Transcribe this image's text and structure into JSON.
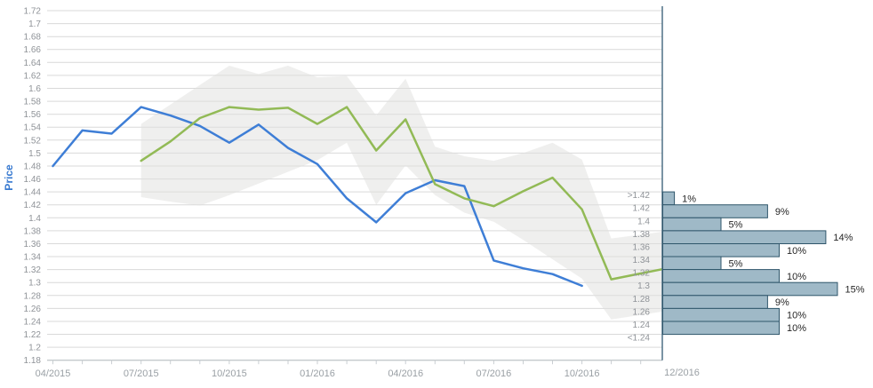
{
  "chart_data": {
    "type": "line",
    "title": "",
    "ylabel": "Price",
    "grid": true,
    "legend": "none",
    "ylim": [
      1.18,
      1.72
    ],
    "y_tick_labels": [
      "1.72",
      "1.7",
      "1.68",
      "1.66",
      "1.64",
      "1.62",
      "1.6",
      "1.58",
      "1.56",
      "1.54",
      "1.52",
      "1.5",
      "1.48",
      "1.46",
      "1.44",
      "1.42",
      "1.4",
      "1.38",
      "1.36",
      "1.34",
      "1.32",
      "1.3",
      "1.28",
      "1.26",
      "1.24",
      "1.22",
      "1.2",
      "1.18"
    ],
    "months": [
      "04/2015",
      "05/2015",
      "06/2015",
      "07/2015",
      "08/2015",
      "09/2015",
      "10/2015",
      "11/2015",
      "12/2015",
      "01/2016",
      "02/2016",
      "03/2016",
      "04/2016",
      "05/2016",
      "06/2016",
      "07/2016",
      "08/2016",
      "09/2016",
      "10/2016",
      "11/2016",
      "12/2016"
    ],
    "x_major_ticks": [
      {
        "label": "04/2015",
        "month_index": 0
      },
      {
        "label": "07/2015",
        "month_index": 3
      },
      {
        "label": "10/2015",
        "month_index": 6
      },
      {
        "label": "01/2016",
        "month_index": 9
      },
      {
        "label": "04/2016",
        "month_index": 12
      },
      {
        "label": "07/2016",
        "month_index": 15
      },
      {
        "label": "10/2016",
        "month_index": 18
      }
    ],
    "minor_tick_every_month": true,
    "series": [
      {
        "name": "price-history",
        "color": "#3e7ed6",
        "start_month_index": 0,
        "values": [
          1.48,
          1.535,
          1.53,
          1.571,
          1.558,
          1.542,
          1.516,
          1.544,
          1.508,
          1.483,
          1.43,
          1.393,
          1.438,
          1.458,
          1.449,
          1.334,
          1.322,
          1.313,
          1.295
        ],
        "extend_to_plot_edge": false
      },
      {
        "name": "forecast",
        "color": "#92ba56",
        "start_month_index": 3,
        "values": [
          1.488,
          1.518,
          1.554,
          1.571,
          1.567,
          1.57,
          1.545,
          1.571,
          1.504,
          1.552,
          1.452,
          1.43,
          1.418,
          1.441,
          1.462,
          1.413,
          1.305,
          1.314
        ],
        "extend_to_plot_edge": true
      }
    ],
    "band": {
      "name": "confidence-band",
      "fill": "rgba(224,224,222,0.5)",
      "start_month_index": 3,
      "upper": [
        1.545,
        1.575,
        1.605,
        1.635,
        1.622,
        1.635,
        1.617,
        1.619,
        1.558,
        1.615,
        1.51,
        1.495,
        1.488,
        1.5,
        1.516,
        1.49,
        1.368,
        1.374
      ],
      "lower": [
        1.432,
        1.425,
        1.419,
        1.435,
        1.453,
        1.471,
        1.489,
        1.516,
        1.42,
        1.481,
        1.435,
        1.408,
        1.394,
        1.366,
        1.336,
        1.306,
        1.243,
        1.25
      ],
      "extend_to_plot_edge": true
    },
    "histogram": {
      "date_label": "12/2016",
      "unit": "%",
      "bar_fill": "#9fb9c7",
      "bar_border": "#2f566b",
      "rows": [
        {
          "range_label": ">1.42",
          "pct": 1
        },
        {
          "range_label": "1.42",
          "pct": 9
        },
        {
          "range_label": "1.4",
          "pct": 5
        },
        {
          "range_label": "1.38",
          "pct": 14
        },
        {
          "range_label": "1.36",
          "pct": 10
        },
        {
          "range_label": "1.34",
          "pct": 5
        },
        {
          "range_label": "1.32",
          "pct": 10
        },
        {
          "range_label": "1.3",
          "pct": 15
        },
        {
          "range_label": "1.28",
          "pct": 9
        },
        {
          "range_label": "1.26",
          "pct": 10
        },
        {
          "range_label": "1.24",
          "pct": 10
        },
        {
          "range_label": "<1.24",
          "pct": null
        }
      ]
    },
    "colors": {
      "gridline": "#d9d9d9",
      "axis_line": "#b6bdc2",
      "tick_text": "#8f9398",
      "x_tick_text": "#9aa0a5",
      "separator": "#4e7186",
      "pct_text": "#262626",
      "price_title": "#3779d0"
    }
  }
}
